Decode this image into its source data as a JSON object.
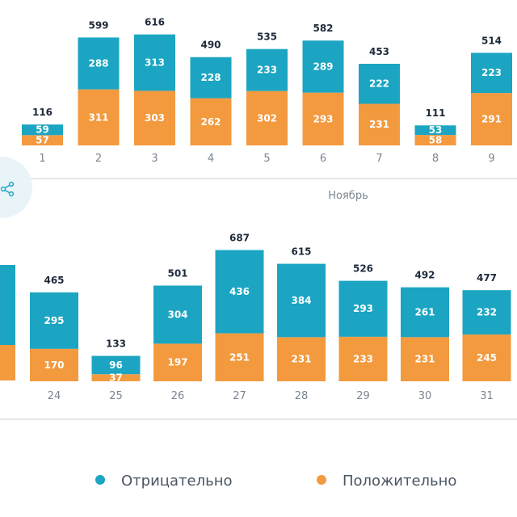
{
  "colors": {
    "negative": "#1ba5c2",
    "positive": "#f39a3f",
    "axis": "#c9cfd6"
  },
  "share_icon": "share-icon",
  "legend": {
    "negative_label": "Отрицательно",
    "positive_label": "Положительно"
  },
  "chart_data": [
    {
      "type": "bar",
      "stacked": true,
      "month_label": "Ноябрь",
      "categories": [
        "1",
        "2",
        "3",
        "4",
        "5",
        "6",
        "7",
        "8",
        "9"
      ],
      "totals": [
        116,
        599,
        616,
        490,
        535,
        582,
        453,
        111,
        514
      ],
      "series": [
        {
          "name": "Положительно",
          "values": [
            57,
            311,
            303,
            262,
            302,
            293,
            231,
            58,
            291
          ]
        },
        {
          "name": "Отрицательно",
          "values": [
            59,
            288,
            313,
            228,
            233,
            289,
            222,
            53,
            223
          ]
        }
      ]
    },
    {
      "type": "bar",
      "stacked": true,
      "categories": [
        "24",
        "25",
        "26",
        "27",
        "28",
        "29",
        "30",
        "31"
      ],
      "totals": [
        465,
        133,
        501,
        687,
        615,
        526,
        492,
        477
      ],
      "series": [
        {
          "name": "Положительно",
          "values": [
            170,
            37,
            197,
            251,
            231,
            233,
            231,
            245
          ]
        },
        {
          "name": "Отрицательно",
          "values": [
            295,
            96,
            304,
            436,
            384,
            293,
            261,
            232
          ]
        }
      ]
    }
  ]
}
